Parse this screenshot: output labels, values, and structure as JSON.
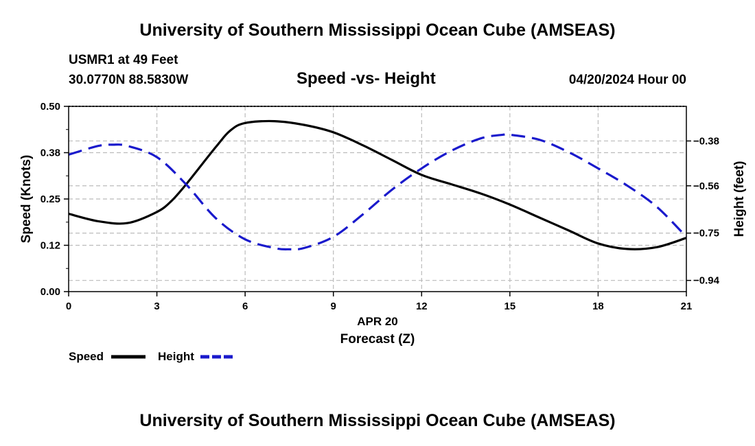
{
  "header": {
    "title": "University of Southern Mississippi Ocean Cube (AMSEAS)",
    "station": "USMR1 at 49 Feet",
    "coordinates": "30.0770N  88.5830W",
    "subtitle": "Speed -vs- Height",
    "datetime": "04/20/2024 Hour 00"
  },
  "footer": {
    "title": "University of Southern Mississippi Ocean Cube (AMSEAS)"
  },
  "chart_data": {
    "type": "line",
    "title": "Speed -vs- Height",
    "xlabel": "Forecast (Z)",
    "xlabel_date": "APR 20",
    "ylabel": "Speed (Knots)",
    "y2label": "Height (feet)",
    "xlim": [
      0,
      21
    ],
    "ylim": [
      0,
      0.5
    ],
    "y2lim": [
      -0.985,
      -0.241
    ],
    "x_ticks": [
      0,
      3,
      6,
      9,
      12,
      15,
      18,
      21
    ],
    "x_tick_labels": [
      "0",
      "3",
      "6",
      "9",
      "12",
      "15",
      "18",
      "21"
    ],
    "y_ticks": [
      0,
      0.125,
      0.25,
      0.375,
      0.5
    ],
    "y_tick_labels": [
      "0.00",
      "0.12",
      "0.25",
      "0.38",
      "0.50"
    ],
    "y2_ticks": [
      -0.38,
      -0.56,
      -0.75,
      -0.94
    ],
    "y2_tick_labels": [
      "-0.38",
      "-0.56",
      "-0.75",
      "-0.94"
    ],
    "grid": true,
    "legend_position": "bottom-left",
    "series": [
      {
        "name": "Speed",
        "axis": "left",
        "color": "#000000",
        "dash": "solid",
        "x": [
          0,
          1,
          2,
          3,
          3.5,
          4,
          5,
          5.5,
          6,
          7,
          8,
          9,
          10,
          11,
          12,
          13,
          14,
          15,
          16,
          17,
          18,
          19,
          20,
          21
        ],
        "values": [
          0.21,
          0.19,
          0.185,
          0.215,
          0.245,
          0.29,
          0.39,
          0.435,
          0.455,
          0.46,
          0.45,
          0.43,
          0.395,
          0.355,
          0.315,
          0.29,
          0.265,
          0.235,
          0.2,
          0.165,
          0.13,
          0.115,
          0.12,
          0.145
        ]
      },
      {
        "name": "Height",
        "axis": "right",
        "color": "#1a1acc",
        "dash": "dashed",
        "x": [
          0,
          1,
          1.5,
          2,
          3,
          4,
          5,
          6,
          7,
          7.5,
          8,
          9,
          10,
          11,
          12,
          13,
          14,
          14.75,
          15,
          16,
          17,
          18,
          19,
          20,
          21
        ],
        "values": [
          -0.435,
          -0.4,
          -0.395,
          -0.4,
          -0.445,
          -0.555,
          -0.69,
          -0.775,
          -0.81,
          -0.815,
          -0.81,
          -0.765,
          -0.675,
          -0.575,
          -0.49,
          -0.42,
          -0.37,
          -0.355,
          -0.355,
          -0.375,
          -0.425,
          -0.49,
          -0.56,
          -0.645,
          -0.765
        ]
      }
    ]
  }
}
